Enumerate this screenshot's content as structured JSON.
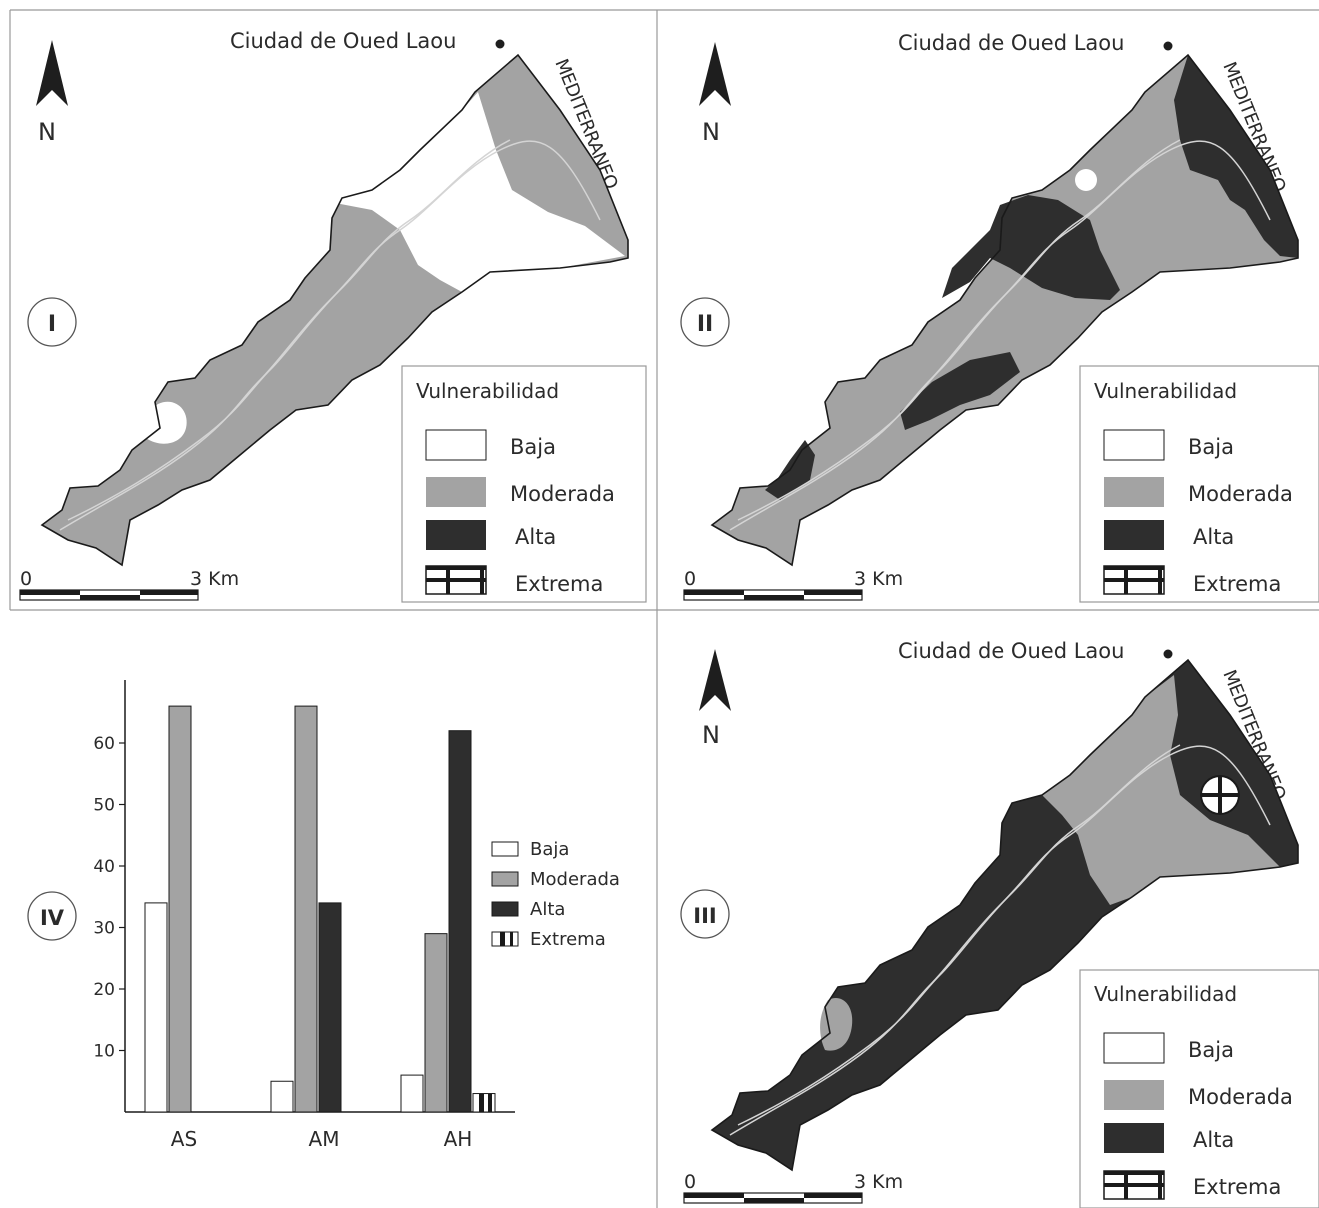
{
  "colors": {
    "baja": "#ffffff",
    "moderada": "#a3a3a3",
    "alta": "#2e2e2e",
    "outline": "#1a1a1a",
    "river": "#d4d4d4"
  },
  "map_common": {
    "city_label": "Ciudad de Oued Laou",
    "sea_label": "MEDITERRANEO",
    "north_label": "N",
    "scale_start": "0",
    "scale_end": "3 Km"
  },
  "legend": {
    "title": "Vulnerabilidad",
    "items": [
      {
        "label": "Baja",
        "color_key": "baja"
      },
      {
        "label": "Moderada",
        "color_key": "moderada"
      },
      {
        "label": "Alta",
        "color_key": "alta"
      },
      {
        "label": "Extrema",
        "color_key": "extrema"
      }
    ]
  },
  "panels": [
    {
      "roman": "I",
      "base_class": "moderada",
      "zones": "White lower-NE zone, moderate upper belt and coast, small white pocket SW"
    },
    {
      "roman": "II",
      "base_class": "moderada",
      "zones": "Alta coast, alta patches along valley"
    },
    {
      "roman": "III",
      "base_class": "alta",
      "zones": "Moderada upper area, extrema spot near coast"
    },
    {
      "roman": "IV"
    }
  ],
  "chart_data": {
    "type": "bar",
    "categories": [
      "AS",
      "AM",
      "AH"
    ],
    "series": [
      {
        "name": "Baja",
        "values": [
          34,
          5,
          6
        ]
      },
      {
        "name": "Moderada",
        "values": [
          66,
          66,
          29
        ]
      },
      {
        "name": "Alta",
        "values": [
          0,
          34,
          62
        ]
      },
      {
        "name": "Extrema",
        "values": [
          0,
          0,
          3
        ]
      }
    ],
    "yticks": [
      "10",
      "20",
      "30",
      "40",
      "50",
      "60"
    ],
    "ylim": [
      0,
      70
    ],
    "legend_position": "right"
  }
}
